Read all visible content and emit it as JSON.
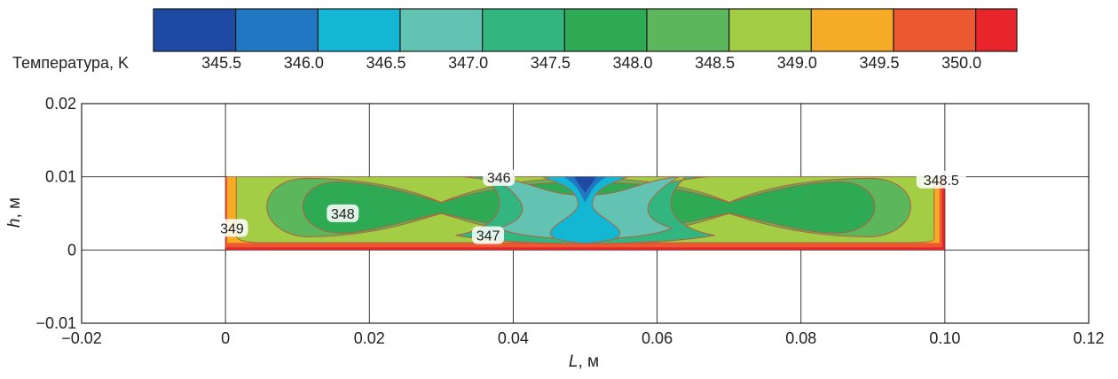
{
  "chart_data": {
    "type": "heatmap",
    "title": "",
    "xlabel": {
      "symbol": "L",
      "unit": ", м"
    },
    "ylabel": {
      "symbol": "h",
      "unit": ", м"
    },
    "xlim": [
      -0.02,
      0.12
    ],
    "ylim": [
      -0.01,
      0.02
    ],
    "x_ticks": [
      -0.02,
      0,
      0.02,
      0.04,
      0.06,
      0.08,
      0.1,
      0.12
    ],
    "x_tick_labels": [
      "−0.02",
      "0",
      "0.02",
      "0.04",
      "0.06",
      "0.08",
      "0.10",
      "0.12"
    ],
    "y_ticks": [
      -0.01,
      0,
      0.01,
      0.02
    ],
    "y_tick_labels": [
      "−0.01",
      "0",
      "0.01",
      "0.02"
    ],
    "grid": true,
    "domain": {
      "x": [
        0,
        0.1
      ],
      "y": [
        0,
        0.01
      ]
    },
    "colorbar": {
      "label": "Температура, K",
      "levels": [
        345.5,
        346.0,
        346.5,
        347.0,
        347.5,
        348.0,
        348.5,
        349.0,
        349.5,
        350.0
      ],
      "tick_labels": [
        "345.5",
        "346.0",
        "346.5",
        "347.0",
        "347.5",
        "348.0",
        "348.5",
        "349.0",
        "349.5",
        "350.0"
      ],
      "colors": [
        "#1f4aa3",
        "#2277c3",
        "#13b6d3",
        "#63c3b3",
        "#33b57f",
        "#2eaa55",
        "#5cb65c",
        "#a3cd45",
        "#f6ab27",
        "#ec5930",
        "#e8252a"
      ]
    },
    "contour_labels": [
      {
        "text": "346",
        "x": 0.038,
        "y": 0.00985
      },
      {
        "text": "348",
        "x": 0.0163,
        "y": 0.0049
      },
      {
        "text": "349",
        "x": 0.0009,
        "y": 0.0029
      },
      {
        "text": "347",
        "x": 0.0365,
        "y": 0.0019
      },
      {
        "text": "348.5",
        "x": 0.0995,
        "y": 0.0095
      }
    ]
  }
}
